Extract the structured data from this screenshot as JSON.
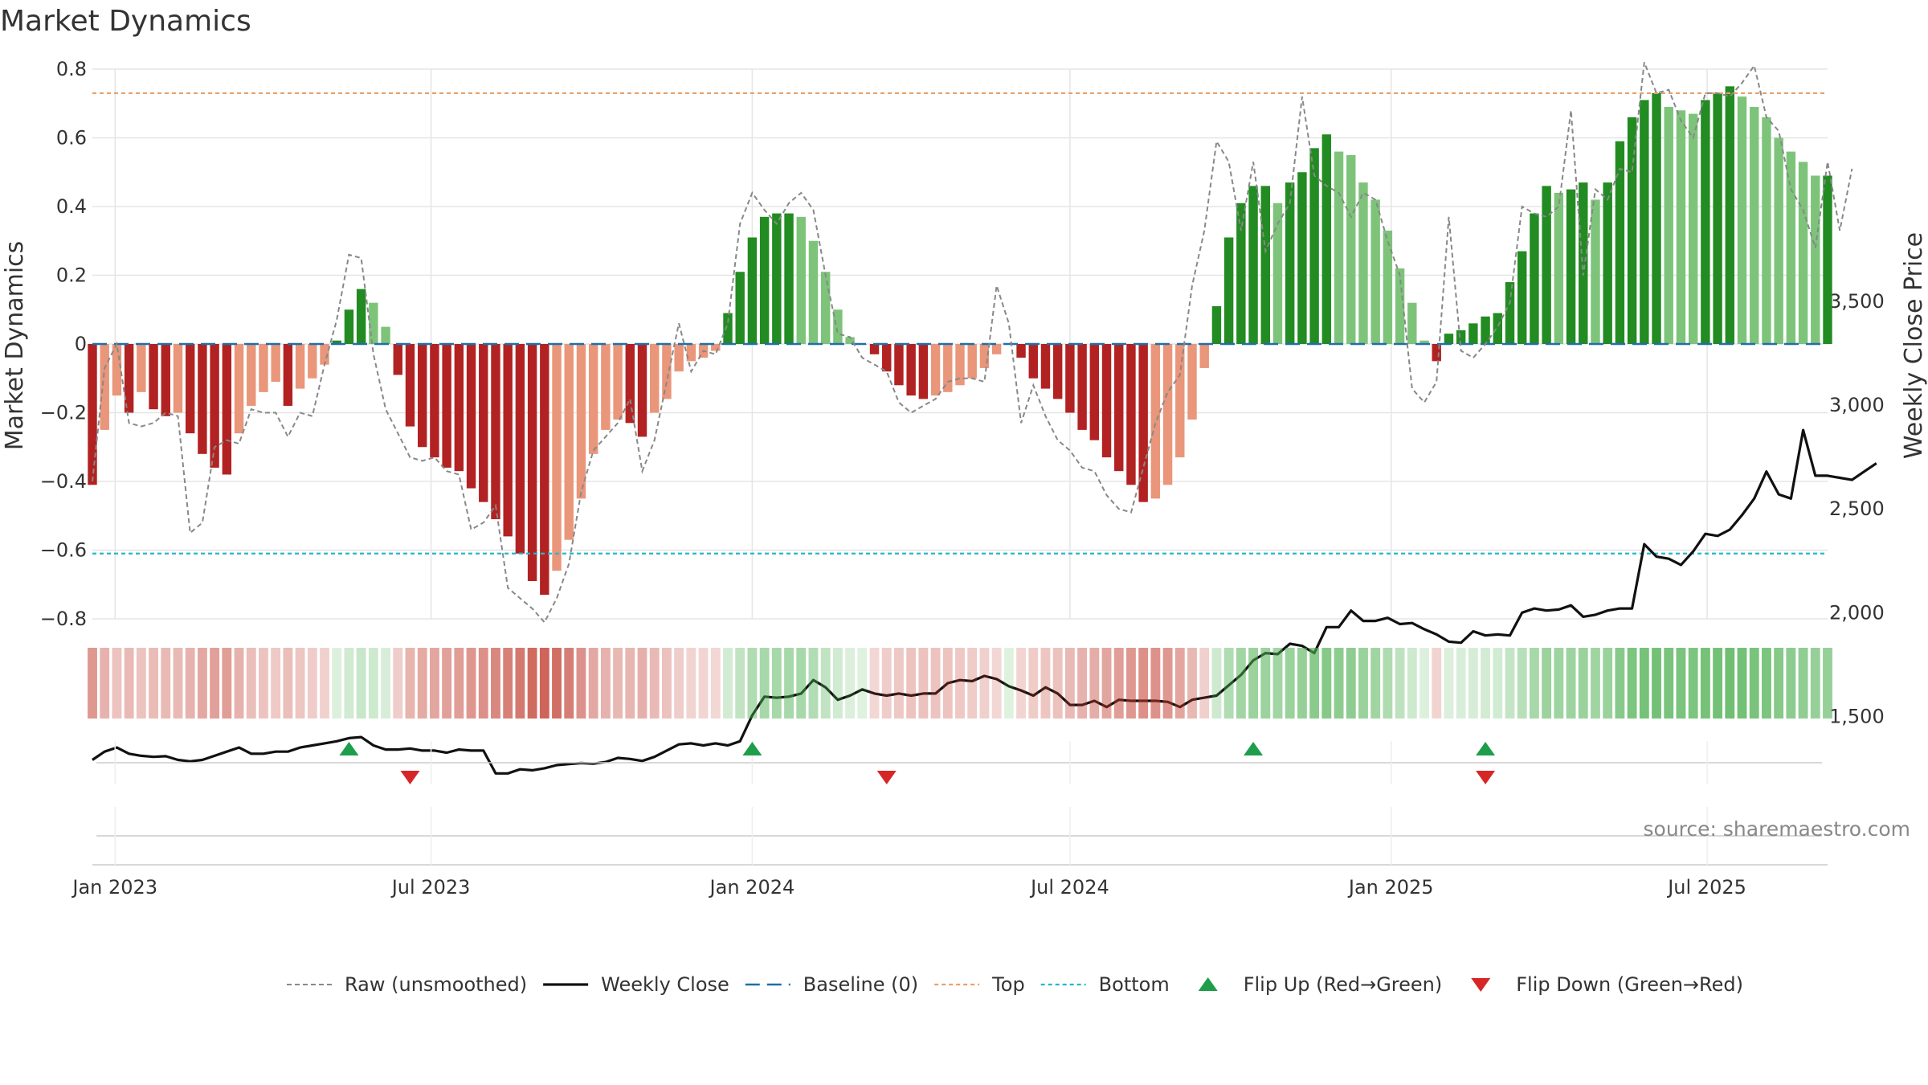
{
  "chart_data": {
    "type": "bar",
    "title": "Market Dynamics",
    "ylabel": "Market Dynamics",
    "y2label": "Weekly Close Price",
    "ylim": [
      -0.8,
      0.8
    ],
    "y2lim": [
      1000,
      3700
    ],
    "yticks": [
      "−0.8",
      "−0.6",
      "−0.4",
      "−0.2",
      "0",
      "0.2",
      "0.4",
      "0.6",
      "0.8"
    ],
    "y2ticks": [
      "1,500",
      "2,000",
      "2,500",
      "3,000",
      "3,500"
    ],
    "xticks": [
      "Jan 2023",
      "Jul 2023",
      "Jan 2024",
      "Jul 2024",
      "Jan 2025",
      "Jul 2025"
    ],
    "x_start": "2022-12-19",
    "interval": "weekly",
    "top_level": 0.73,
    "bottom_level": -0.61,
    "bar_colors": {
      "strong_green": "#228B22",
      "light_green": "#7DC47A",
      "strong_red": "#B22222",
      "light_red": "#E9967A"
    },
    "smoothed": [
      -0.41,
      -0.25,
      -0.15,
      -0.2,
      -0.14,
      -0.19,
      -0.21,
      -0.2,
      -0.26,
      -0.32,
      -0.36,
      -0.38,
      -0.26,
      -0.18,
      -0.14,
      -0.11,
      -0.18,
      -0.13,
      -0.1,
      -0.06,
      0.01,
      0.1,
      0.16,
      0.12,
      0.05,
      -0.09,
      -0.24,
      -0.3,
      -0.33,
      -0.36,
      -0.37,
      -0.42,
      -0.46,
      -0.51,
      -0.56,
      -0.61,
      -0.69,
      -0.73,
      -0.66,
      -0.57,
      -0.45,
      -0.32,
      -0.25,
      -0.22,
      -0.23,
      -0.27,
      -0.2,
      -0.16,
      -0.08,
      -0.05,
      -0.04,
      -0.02,
      0.09,
      0.21,
      0.31,
      0.37,
      0.38,
      0.38,
      0.37,
      0.3,
      0.21,
      0.1,
      0.02,
      0.0,
      -0.03,
      -0.08,
      -0.12,
      -0.15,
      -0.16,
      -0.15,
      -0.14,
      -0.12,
      -0.1,
      -0.07,
      -0.03,
      0.0,
      -0.04,
      -0.1,
      -0.13,
      -0.16,
      -0.2,
      -0.25,
      -0.28,
      -0.33,
      -0.37,
      -0.41,
      -0.46,
      -0.45,
      -0.41,
      -0.33,
      -0.22,
      -0.07,
      0.11,
      0.31,
      0.41,
      0.46,
      0.46,
      0.41,
      0.47,
      0.5,
      0.57,
      0.61,
      0.56,
      0.55,
      0.47,
      0.42,
      0.33,
      0.22,
      0.12,
      0.01,
      -0.05,
      0.03,
      0.04,
      0.06,
      0.08,
      0.09,
      0.18,
      0.27,
      0.38,
      0.46,
      0.44,
      0.45,
      0.47,
      0.42,
      0.47,
      0.59,
      0.66,
      0.71,
      0.73,
      0.69,
      0.68,
      0.67,
      0.71,
      0.73,
      0.75,
      0.72,
      0.69,
      0.66,
      0.6,
      0.56,
      0.53,
      0.49,
      0.49
    ],
    "raw": [
      -0.4,
      -0.07,
      0.0,
      -0.23,
      -0.24,
      -0.23,
      -0.2,
      -0.21,
      -0.55,
      -0.52,
      -0.3,
      -0.28,
      -0.29,
      -0.19,
      -0.2,
      -0.2,
      -0.27,
      -0.2,
      -0.21,
      -0.06,
      0.07,
      0.26,
      0.25,
      -0.03,
      -0.19,
      -0.26,
      -0.33,
      -0.34,
      -0.33,
      -0.37,
      -0.38,
      -0.54,
      -0.52,
      -0.47,
      -0.71,
      -0.74,
      -0.77,
      -0.81,
      -0.74,
      -0.64,
      -0.43,
      -0.31,
      -0.27,
      -0.23,
      -0.16,
      -0.37,
      -0.28,
      -0.11,
      0.06,
      -0.08,
      -0.02,
      -0.03,
      0.06,
      0.35,
      0.44,
      0.39,
      0.35,
      0.41,
      0.44,
      0.39,
      0.2,
      0.03,
      0.02,
      -0.04,
      -0.06,
      -0.08,
      -0.17,
      -0.2,
      -0.18,
      -0.16,
      -0.11,
      -0.1,
      -0.1,
      -0.11,
      0.17,
      0.06,
      -0.23,
      -0.12,
      -0.21,
      -0.28,
      -0.31,
      -0.36,
      -0.37,
      -0.44,
      -0.48,
      -0.49,
      -0.36,
      -0.23,
      -0.14,
      -0.09,
      0.17,
      0.33,
      0.59,
      0.53,
      0.33,
      0.53,
      0.27,
      0.35,
      0.41,
      0.72,
      0.49,
      0.46,
      0.44,
      0.37,
      0.44,
      0.42,
      0.3,
      0.2,
      -0.13,
      -0.17,
      -0.11,
      0.37,
      -0.02,
      -0.04,
      0.0,
      0.05,
      0.12,
      0.4,
      0.38,
      0.37,
      0.4,
      0.68,
      0.2,
      0.45,
      0.42,
      0.51,
      0.5,
      0.82,
      0.73,
      0.74,
      0.65,
      0.6,
      0.73,
      0.73,
      0.72,
      0.76,
      0.81,
      0.66,
      0.62,
      0.45,
      0.39,
      0.28,
      0.53,
      0.33,
      0.51
    ],
    "close": [
      1290,
      1330,
      1350,
      1320,
      1310,
      1305,
      1308,
      1290,
      1283,
      1290,
      1310,
      1330,
      1350,
      1320,
      1320,
      1330,
      1330,
      1350,
      1360,
      1370,
      1380,
      1395,
      1400,
      1360,
      1340,
      1340,
      1345,
      1335,
      1335,
      1325,
      1340,
      1335,
      1335,
      1225,
      1225,
      1245,
      1240,
      1250,
      1265,
      1270,
      1275,
      1272,
      1280,
      1300,
      1295,
      1285,
      1305,
      1335,
      1365,
      1370,
      1360,
      1370,
      1360,
      1380,
      1505,
      1595,
      1590,
      1595,
      1610,
      1675,
      1640,
      1580,
      1600,
      1630,
      1610,
      1600,
      1610,
      1600,
      1610,
      1610,
      1660,
      1675,
      1670,
      1695,
      1680,
      1645,
      1625,
      1600,
      1640,
      1610,
      1555,
      1555,
      1575,
      1545,
      1580,
      1575,
      1575,
      1575,
      1570,
      1545,
      1580,
      1590,
      1600,
      1650,
      1700,
      1770,
      1805,
      1800,
      1850,
      1840,
      1805,
      1930,
      1930,
      2010,
      1960,
      1960,
      1975,
      1945,
      1950,
      1920,
      1895,
      1860,
      1855,
      1910,
      1890,
      1895,
      1890,
      2000,
      2020,
      2010,
      2015,
      2035,
      1980,
      1990,
      2010,
      2020,
      2020,
      2330,
      2270,
      2260,
      2230,
      2295,
      2380,
      2370,
      2400,
      2470,
      2550,
      2680,
      2570,
      2550,
      2880,
      2660,
      2660,
      2650,
      2640,
      2680,
      2720
    ]
  },
  "strip": {
    "green_color": "#4CAF50",
    "red_color": "#C0392B"
  },
  "flips": {
    "up_color": "#1E9E4A",
    "down_color": "#D62728",
    "up_weeks": [
      21,
      54,
      95,
      114
    ],
    "down_weeks": [
      26,
      65,
      114
    ]
  },
  "source": "source: sharemaestro.com",
  "legend": [
    {
      "label": "Raw (unsmoothed)",
      "style": "raw"
    },
    {
      "label": "Weekly Close",
      "style": "close"
    },
    {
      "label": "Baseline (0)",
      "style": "baseline"
    },
    {
      "label": "Top",
      "style": "top"
    },
    {
      "label": "Bottom",
      "style": "bottom"
    },
    {
      "label": "Flip Up (Red→Green)",
      "style": "flipup"
    },
    {
      "label": "Flip Down (Green→Red)",
      "style": "flipdown"
    }
  ]
}
